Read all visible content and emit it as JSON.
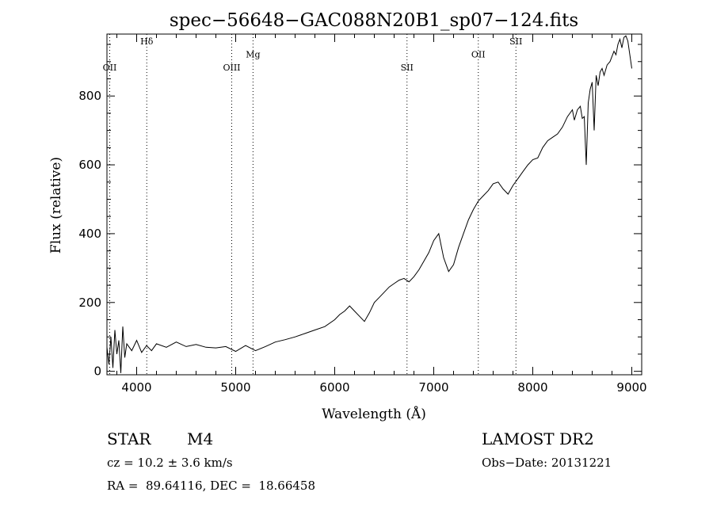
{
  "chart_data": {
    "type": "line",
    "title": "spec−56648−GAC088N20B1_sp07−124.fits",
    "xlabel": "Wavelength (Å)",
    "ylabel": "Flux (relative)",
    "xlim": [
      3700,
      9100
    ],
    "ylim": [
      -10,
      980
    ],
    "x_ticks": [
      4000,
      5000,
      6000,
      7000,
      8000,
      9000
    ],
    "y_ticks": [
      0,
      200,
      400,
      600,
      800
    ],
    "grid": false,
    "line_color": "#000000",
    "series": [
      {
        "x": [
          3700,
          3720,
          3740,
          3760,
          3780,
          3800,
          3820,
          3840,
          3860,
          3880,
          3900,
          3950,
          4000,
          4050,
          4100,
          4150,
          4200,
          4300,
          4400,
          4500,
          4600,
          4700,
          4800,
          4900,
          5000,
          5100,
          5200,
          5300,
          5400,
          5500,
          5600,
          5700,
          5800,
          5900,
          6000,
          6050,
          6100,
          6150,
          6200,
          6250,
          6300,
          6350,
          6400,
          6450,
          6500,
          6550,
          6600,
          6650,
          6700,
          6750,
          6800,
          6850,
          6900,
          6950,
          7000,
          7050,
          7100,
          7150,
          7200,
          7250,
          7300,
          7350,
          7400,
          7450,
          7500,
          7550,
          7600,
          7650,
          7700,
          7750,
          7800,
          7850,
          7900,
          7950,
          8000,
          8050,
          8100,
          8150,
          8200,
          8250,
          8300,
          8350,
          8400,
          8420,
          8450,
          8480,
          8500,
          8520,
          8540,
          8560,
          8580,
          8600,
          8620,
          8640,
          8660,
          8680,
          8700,
          8720,
          8750,
          8780,
          8800,
          8820,
          8840,
          8860,
          8880,
          8900,
          8920,
          8940,
          8960,
          8980,
          9000
        ],
        "y": [
          70,
          20,
          100,
          10,
          120,
          50,
          90,
          -5,
          130,
          40,
          80,
          60,
          90,
          55,
          75,
          60,
          80,
          70,
          85,
          72,
          78,
          70,
          68,
          72,
          58,
          75,
          60,
          72,
          85,
          92,
          100,
          110,
          120,
          130,
          150,
          165,
          175,
          190,
          175,
          160,
          145,
          170,
          200,
          215,
          230,
          245,
          255,
          265,
          270,
          260,
          275,
          295,
          320,
          345,
          380,
          400,
          330,
          290,
          310,
          360,
          400,
          440,
          470,
          495,
          510,
          525,
          545,
          550,
          530,
          515,
          540,
          560,
          580,
          600,
          615,
          620,
          650,
          670,
          680,
          690,
          710,
          740,
          760,
          730,
          760,
          770,
          735,
          740,
          600,
          780,
          820,
          840,
          700,
          860,
          830,
          870,
          880,
          860,
          890,
          900,
          915,
          930,
          920,
          950,
          965,
          940,
          970,
          975,
          960,
          920,
          880
        ]
      }
    ],
    "annotations": [
      {
        "label": "OII",
        "x": 3728,
        "y": 874
      },
      {
        "label": "Hδ",
        "x": 4102,
        "y": 950
      },
      {
        "label": "OIII",
        "x": 4960,
        "y": 874
      },
      {
        "label": "Mg",
        "x": 5175,
        "y": 912
      },
      {
        "label": "SII",
        "x": 6730,
        "y": 874
      },
      {
        "label": "OII",
        "x": 7450,
        "y": 912
      },
      {
        "label": "SII",
        "x": 7830,
        "y": 950
      }
    ]
  },
  "info": {
    "class_label": "STAR",
    "subclass": "M4",
    "survey": "LAMOST DR2",
    "cz": "cz = 10.2 ± 3.6 km/s",
    "obs_date": "Obs−Date: 20131221",
    "coords": "RA =  89.64116, DEC =  18.66458"
  }
}
